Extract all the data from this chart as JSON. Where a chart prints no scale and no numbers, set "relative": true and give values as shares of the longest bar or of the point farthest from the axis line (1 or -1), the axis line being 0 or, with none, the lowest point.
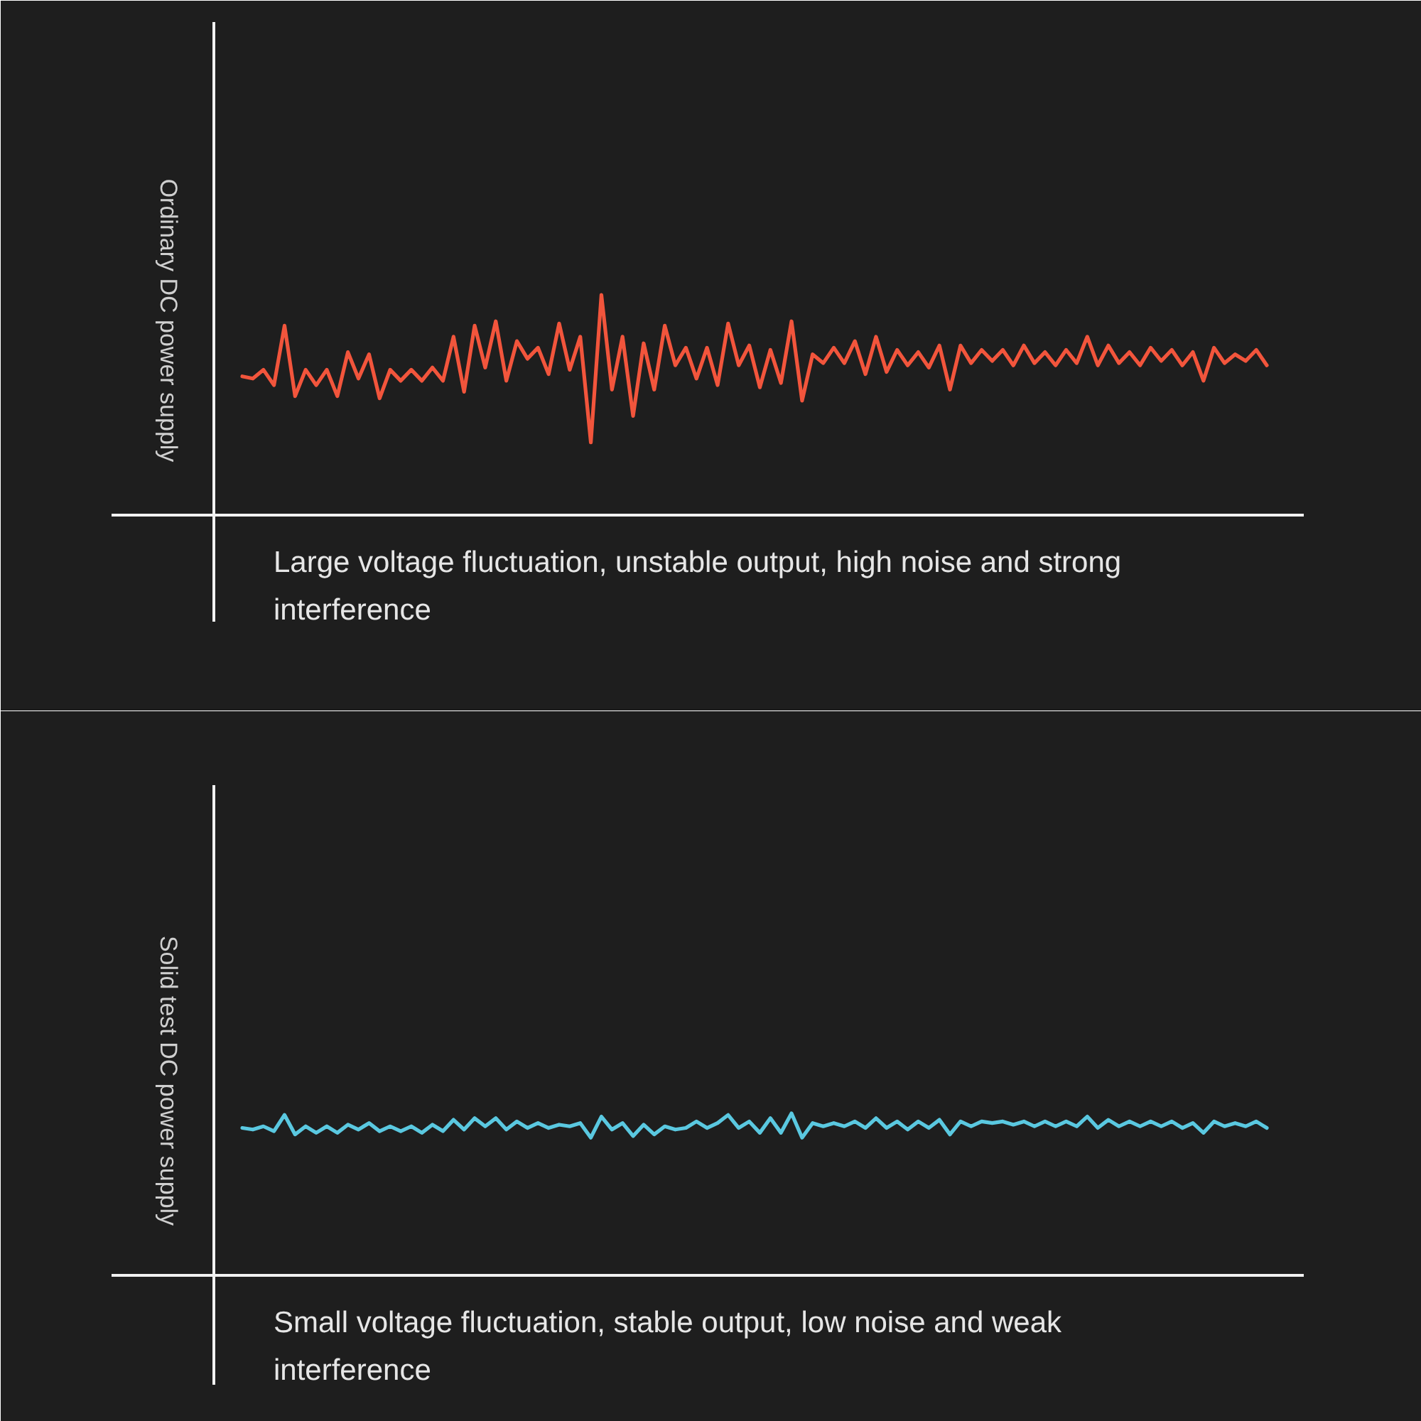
{
  "chart_data": [
    {
      "type": "line",
      "relative": true,
      "ylabel": "Ordinary DC power supply",
      "annotations": [
        "Large voltage fluctuation, unstable output, high noise and strong interference"
      ],
      "categories": [
        null,
        null,
        null,
        null,
        null,
        null,
        null,
        null,
        null,
        null,
        null,
        null,
        null,
        null,
        null,
        null,
        null,
        null,
        null,
        null,
        null,
        null,
        null,
        null,
        null,
        null,
        null,
        null,
        null,
        null,
        null,
        null,
        null,
        null,
        null,
        null,
        null,
        null,
        null,
        null,
        null,
        null,
        null,
        null,
        null,
        null,
        null,
        null,
        null,
        null,
        null,
        null,
        null,
        null,
        null,
        null,
        null,
        null,
        null,
        null,
        null,
        null,
        null,
        null,
        null,
        null,
        null,
        null,
        null,
        null,
        null,
        null,
        null,
        null,
        null,
        null,
        null,
        null,
        null,
        null,
        null,
        null,
        null,
        null,
        null,
        null,
        null,
        null,
        null,
        null,
        null,
        null,
        null,
        null,
        null,
        null,
        null,
        null
      ],
      "series": [
        {
          "color": "#f2553c",
          "values": [
            0.63,
            0.62,
            0.66,
            0.59,
            0.86,
            0.54,
            0.66,
            0.59,
            0.66,
            0.54,
            0.74,
            0.62,
            0.73,
            0.53,
            0.66,
            0.61,
            0.66,
            0.61,
            0.67,
            0.61,
            0.81,
            0.56,
            0.86,
            0.67,
            0.88,
            0.61,
            0.79,
            0.71,
            0.76,
            0.64,
            0.87,
            0.66,
            0.81,
            0.33,
            1,
            0.57,
            0.81,
            0.45,
            0.78,
            0.57,
            0.86,
            0.68,
            0.76,
            0.62,
            0.76,
            0.59,
            0.87,
            0.68,
            0.77,
            0.58,
            0.75,
            0.6,
            0.88,
            0.52,
            0.73,
            0.69,
            0.76,
            0.69,
            0.79,
            0.64,
            0.81,
            0.65,
            0.75,
            0.68,
            0.74,
            0.67,
            0.77,
            0.57,
            0.77,
            0.69,
            0.75,
            0.7,
            0.75,
            0.68,
            0.77,
            0.69,
            0.74,
            0.68,
            0.75,
            0.69,
            0.81,
            0.68,
            0.77,
            0.69,
            0.74,
            0.68,
            0.76,
            0.7,
            0.75,
            0.68,
            0.74,
            0.61,
            0.76,
            0.69,
            0.73,
            0.7,
            0.75,
            0.68
          ]
        }
      ]
    },
    {
      "type": "line",
      "relative": true,
      "ylabel": "Solid test DC power supply",
      "annotations": [
        "Small voltage fluctuation, stable output, low noise and weak interference"
      ],
      "categories": [
        null,
        null,
        null,
        null,
        null,
        null,
        null,
        null,
        null,
        null,
        null,
        null,
        null,
        null,
        null,
        null,
        null,
        null,
        null,
        null,
        null,
        null,
        null,
        null,
        null,
        null,
        null,
        null,
        null,
        null,
        null,
        null,
        null,
        null,
        null,
        null,
        null,
        null,
        null,
        null,
        null,
        null,
        null,
        null,
        null,
        null,
        null,
        null,
        null,
        null,
        null,
        null,
        null,
        null,
        null,
        null,
        null,
        null,
        null,
        null,
        null,
        null,
        null,
        null,
        null,
        null,
        null,
        null,
        null,
        null,
        null,
        null,
        null,
        null,
        null,
        null,
        null,
        null,
        null,
        null,
        null,
        null,
        null,
        null,
        null,
        null,
        null,
        null,
        null,
        null,
        null,
        null,
        null,
        null,
        null,
        null,
        null,
        null
      ],
      "series": [
        {
          "color": "#5ac8e0",
          "values": [
            0.91,
            0.9,
            0.92,
            0.89,
            0.99,
            0.87,
            0.92,
            0.88,
            0.92,
            0.88,
            0.93,
            0.9,
            0.94,
            0.89,
            0.92,
            0.89,
            0.92,
            0.88,
            0.93,
            0.89,
            0.96,
            0.9,
            0.97,
            0.92,
            0.97,
            0.9,
            0.95,
            0.91,
            0.94,
            0.91,
            0.93,
            0.92,
            0.94,
            0.85,
            0.98,
            0.9,
            0.94,
            0.86,
            0.93,
            0.87,
            0.92,
            0.9,
            0.91,
            0.95,
            0.91,
            0.94,
            0.99,
            0.91,
            0.95,
            0.88,
            0.97,
            0.88,
            1,
            0.85,
            0.94,
            0.92,
            0.94,
            0.92,
            0.95,
            0.91,
            0.97,
            0.91,
            0.95,
            0.9,
            0.95,
            0.91,
            0.96,
            0.87,
            0.95,
            0.92,
            0.95,
            0.94,
            0.95,
            0.93,
            0.95,
            0.92,
            0.95,
            0.92,
            0.95,
            0.92,
            0.98,
            0.91,
            0.96,
            0.92,
            0.95,
            0.92,
            0.95,
            0.92,
            0.95,
            0.91,
            0.94,
            0.88,
            0.95,
            0.92,
            0.94,
            0.92,
            0.95,
            0.91
          ]
        }
      ]
    }
  ]
}
